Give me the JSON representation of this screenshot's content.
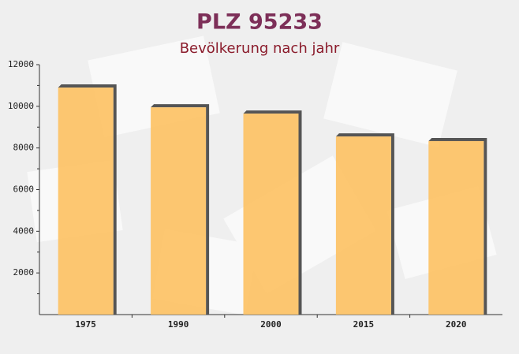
{
  "chart_data": {
    "type": "bar",
    "title": "PLZ 95233",
    "subtitle": "Bevölkerung nach jahr",
    "categories": [
      "1975",
      "1990",
      "2000",
      "2015",
      "2020"
    ],
    "values": [
      10900,
      9950,
      9650,
      8550,
      8330
    ],
    "color": "#fdc265",
    "ylim": [
      0,
      12000
    ],
    "yticks": [
      2000,
      4000,
      6000,
      8000,
      10000,
      12000
    ],
    "grid": false
  }
}
